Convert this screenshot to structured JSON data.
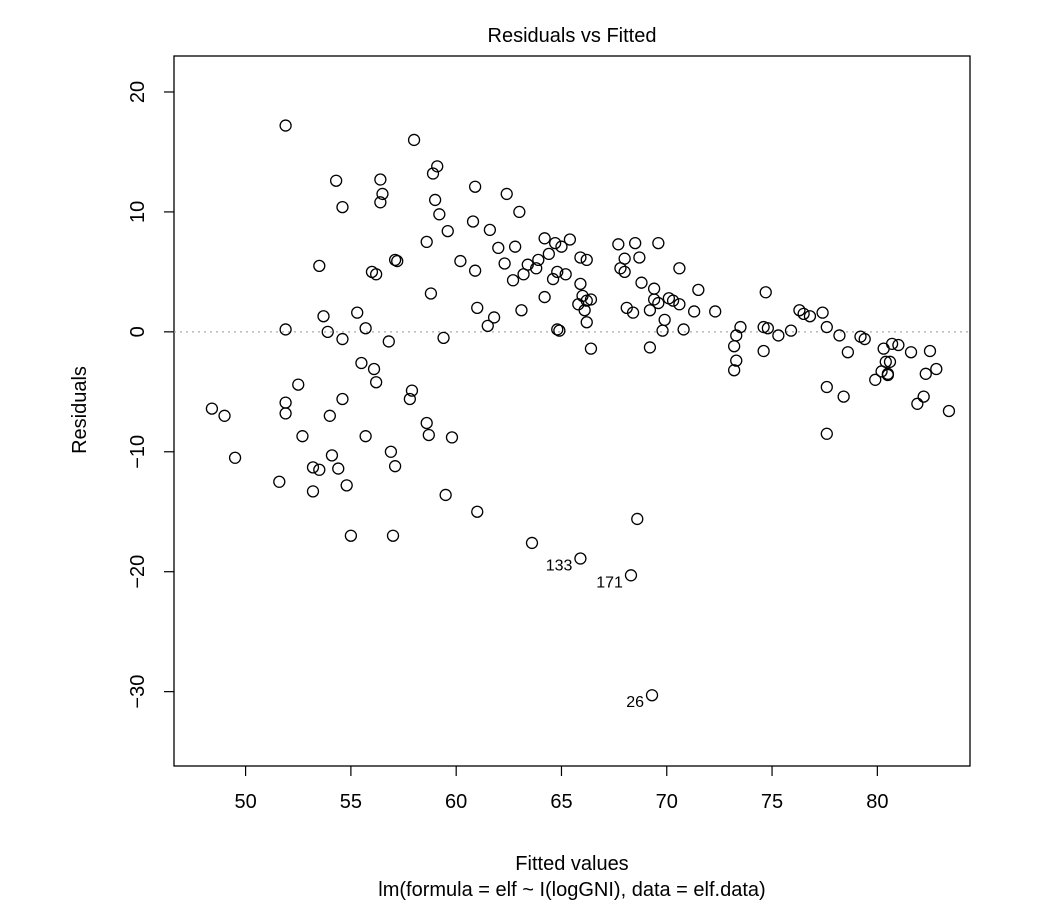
{
  "chart_data": {
    "type": "scatter",
    "title": "Residuals vs Fitted",
    "xlabel": "Fitted values",
    "subtitle": "lm(formula = elf ~ I(logGNI), data = elf.data)",
    "ylabel": "Residuals",
    "xlim": [
      46.6,
      84.4
    ],
    "ylim": [
      -36.2,
      23.0
    ],
    "xticks": [
      50,
      55,
      60,
      65,
      70,
      75,
      80
    ],
    "yticks": [
      -30,
      -20,
      -10,
      0,
      10,
      20
    ],
    "reference_line": 0,
    "grid": false,
    "labeled_points": [
      {
        "label": "133",
        "x": 65.9,
        "y": -18.9
      },
      {
        "label": "171",
        "x": 68.3,
        "y": -20.3
      },
      {
        "label": "26",
        "x": 69.3,
        "y": -30.3
      }
    ],
    "points": [
      [
        48.4,
        -6.4
      ],
      [
        49.0,
        -7.0
      ],
      [
        49.5,
        -10.5
      ],
      [
        51.6,
        -12.5
      ],
      [
        51.9,
        17.2
      ],
      [
        51.9,
        0.2
      ],
      [
        51.9,
        -5.9
      ],
      [
        51.9,
        -6.8
      ],
      [
        52.5,
        -4.4
      ],
      [
        52.7,
        -8.7
      ],
      [
        53.2,
        -11.3
      ],
      [
        53.2,
        -13.3
      ],
      [
        53.5,
        5.5
      ],
      [
        53.5,
        -11.5
      ],
      [
        53.7,
        1.3
      ],
      [
        53.9,
        0.0
      ],
      [
        54.0,
        -7.0
      ],
      [
        54.1,
        -10.3
      ],
      [
        54.3,
        12.6
      ],
      [
        54.4,
        -11.4
      ],
      [
        54.6,
        10.4
      ],
      [
        54.6,
        -0.6
      ],
      [
        54.6,
        -5.6
      ],
      [
        54.8,
        -12.8
      ],
      [
        55.0,
        -17.0
      ],
      [
        55.3,
        1.6
      ],
      [
        55.5,
        -2.6
      ],
      [
        55.7,
        0.3
      ],
      [
        55.7,
        -8.7
      ],
      [
        56.0,
        5.0
      ],
      [
        56.1,
        -3.1
      ],
      [
        56.2,
        4.8
      ],
      [
        56.2,
        -4.2
      ],
      [
        56.4,
        12.7
      ],
      [
        56.4,
        10.8
      ],
      [
        56.5,
        11.5
      ],
      [
        56.8,
        -0.8
      ],
      [
        56.9,
        -10.0
      ],
      [
        57.0,
        -17.0
      ],
      [
        57.1,
        6.0
      ],
      [
        57.1,
        -11.2
      ],
      [
        57.2,
        5.9
      ],
      [
        57.8,
        -5.6
      ],
      [
        57.9,
        -4.9
      ],
      [
        58.0,
        16.0
      ],
      [
        58.6,
        7.5
      ],
      [
        58.6,
        -7.6
      ],
      [
        58.7,
        -8.6
      ],
      [
        58.8,
        3.2
      ],
      [
        58.9,
        13.2
      ],
      [
        59.0,
        11.0
      ],
      [
        59.1,
        13.8
      ],
      [
        59.2,
        9.8
      ],
      [
        59.4,
        -0.5
      ],
      [
        59.5,
        -13.6
      ],
      [
        59.6,
        8.4
      ],
      [
        59.8,
        -8.8
      ],
      [
        60.2,
        5.9
      ],
      [
        60.8,
        9.2
      ],
      [
        60.9,
        12.1
      ],
      [
        60.9,
        5.1
      ],
      [
        61.0,
        2.0
      ],
      [
        61.0,
        -15.0
      ],
      [
        61.5,
        0.5
      ],
      [
        61.6,
        8.5
      ],
      [
        61.8,
        1.2
      ],
      [
        62.0,
        7.0
      ],
      [
        62.3,
        5.7
      ],
      [
        62.4,
        11.5
      ],
      [
        62.7,
        4.3
      ],
      [
        62.8,
        7.1
      ],
      [
        63.0,
        10.0
      ],
      [
        63.1,
        1.8
      ],
      [
        63.2,
        4.8
      ],
      [
        63.4,
        5.6
      ],
      [
        63.6,
        -17.6
      ],
      [
        63.8,
        5.3
      ],
      [
        63.9,
        6.0
      ],
      [
        64.2,
        7.8
      ],
      [
        64.2,
        2.9
      ],
      [
        64.4,
        6.5
      ],
      [
        64.6,
        4.4
      ],
      [
        64.7,
        7.4
      ],
      [
        64.8,
        5.0
      ],
      [
        64.8,
        0.2
      ],
      [
        64.9,
        0.1
      ],
      [
        65.0,
        7.1
      ],
      [
        65.2,
        4.8
      ],
      [
        65.4,
        7.7
      ],
      [
        65.8,
        2.3
      ],
      [
        65.9,
        -18.9
      ],
      [
        65.9,
        4.0
      ],
      [
        65.9,
        6.2
      ],
      [
        66.0,
        3.0
      ],
      [
        66.1,
        1.8
      ],
      [
        66.2,
        6.0
      ],
      [
        66.2,
        2.6
      ],
      [
        66.2,
        0.8
      ],
      [
        66.4,
        2.7
      ],
      [
        66.4,
        -1.4
      ],
      [
        67.7,
        7.3
      ],
      [
        67.8,
        5.3
      ],
      [
        68.0,
        6.1
      ],
      [
        68.0,
        5.0
      ],
      [
        68.1,
        2.0
      ],
      [
        68.3,
        -20.3
      ],
      [
        68.4,
        1.6
      ],
      [
        68.5,
        7.4
      ],
      [
        68.6,
        -15.6
      ],
      [
        68.7,
        6.2
      ],
      [
        68.8,
        4.1
      ],
      [
        69.2,
        1.8
      ],
      [
        69.2,
        -1.3
      ],
      [
        69.3,
        -30.3
      ],
      [
        69.4,
        2.7
      ],
      [
        69.4,
        3.6
      ],
      [
        69.6,
        7.4
      ],
      [
        69.6,
        2.4
      ],
      [
        69.8,
        0.1
      ],
      [
        69.9,
        1.0
      ],
      [
        70.1,
        2.8
      ],
      [
        70.3,
        2.6
      ],
      [
        70.6,
        5.3
      ],
      [
        70.6,
        2.3
      ],
      [
        70.8,
        0.2
      ],
      [
        71.3,
        1.7
      ],
      [
        71.5,
        3.5
      ],
      [
        72.3,
        1.7
      ],
      [
        73.2,
        -1.2
      ],
      [
        73.2,
        -3.2
      ],
      [
        73.3,
        -0.3
      ],
      [
        73.3,
        -2.4
      ],
      [
        73.5,
        0.4
      ],
      [
        74.6,
        -1.6
      ],
      [
        74.6,
        0.4
      ],
      [
        74.7,
        3.3
      ],
      [
        74.8,
        0.3
      ],
      [
        75.3,
        -0.3
      ],
      [
        75.9,
        0.1
      ],
      [
        76.3,
        1.8
      ],
      [
        76.5,
        1.5
      ],
      [
        76.8,
        1.3
      ],
      [
        77.4,
        1.6
      ],
      [
        77.6,
        -4.6
      ],
      [
        77.6,
        -8.5
      ],
      [
        77.6,
        0.4
      ],
      [
        78.2,
        -0.3
      ],
      [
        78.4,
        -5.4
      ],
      [
        78.6,
        -1.7
      ],
      [
        79.2,
        -0.4
      ],
      [
        79.4,
        -0.6
      ],
      [
        79.9,
        -4.0
      ],
      [
        80.2,
        -3.3
      ],
      [
        80.3,
        -1.4
      ],
      [
        80.4,
        -2.5
      ],
      [
        80.5,
        -3.6
      ],
      [
        80.5,
        -3.5
      ],
      [
        80.6,
        -2.5
      ],
      [
        80.7,
        -1.0
      ],
      [
        81.0,
        -1.1
      ],
      [
        81.6,
        -1.7
      ],
      [
        81.9,
        -6.0
      ],
      [
        82.2,
        -5.4
      ],
      [
        82.3,
        -3.5
      ],
      [
        82.5,
        -1.6
      ],
      [
        82.8,
        -3.1
      ],
      [
        83.4,
        -6.6
      ]
    ]
  }
}
